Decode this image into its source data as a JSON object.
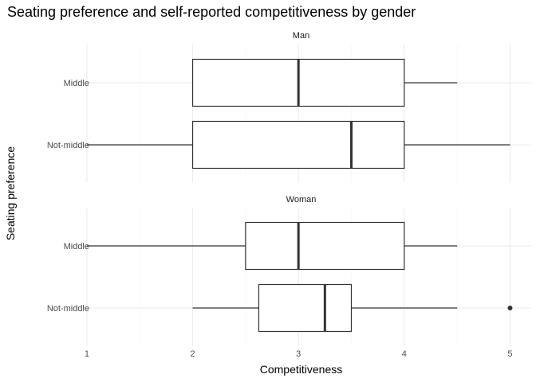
{
  "chart_data": {
    "type": "boxplot",
    "title": "Seating preference and self-reported competitiveness by gender",
    "xlabel": "Competitiveness",
    "ylabel": "Seating preference",
    "xlim": [
      0.85,
      5.2
    ],
    "x_ticks": [
      1,
      2,
      3,
      4,
      5
    ],
    "grid": true,
    "categories": [
      "Middle",
      "Not-middle"
    ],
    "panels": [
      {
        "name": "Man",
        "boxes": [
          {
            "category": "Middle",
            "whisker_low": 2,
            "q1": 2,
            "median": 3,
            "q3": 4,
            "whisker_high": 4.5,
            "outliers": []
          },
          {
            "category": "Not-middle",
            "whisker_low": 1,
            "q1": 2,
            "median": 3.5,
            "q3": 4,
            "whisker_high": 5,
            "outliers": []
          }
        ]
      },
      {
        "name": "Woman",
        "boxes": [
          {
            "category": "Middle",
            "whisker_low": 1,
            "q1": 2.5,
            "median": 3,
            "q3": 4,
            "whisker_high": 4.5,
            "outliers": []
          },
          {
            "category": "Not-middle",
            "whisker_low": 2,
            "q1": 2.625,
            "median": 3.25,
            "q3": 3.5,
            "whisker_high": 4.5,
            "outliers": [
              5
            ]
          }
        ]
      }
    ]
  }
}
